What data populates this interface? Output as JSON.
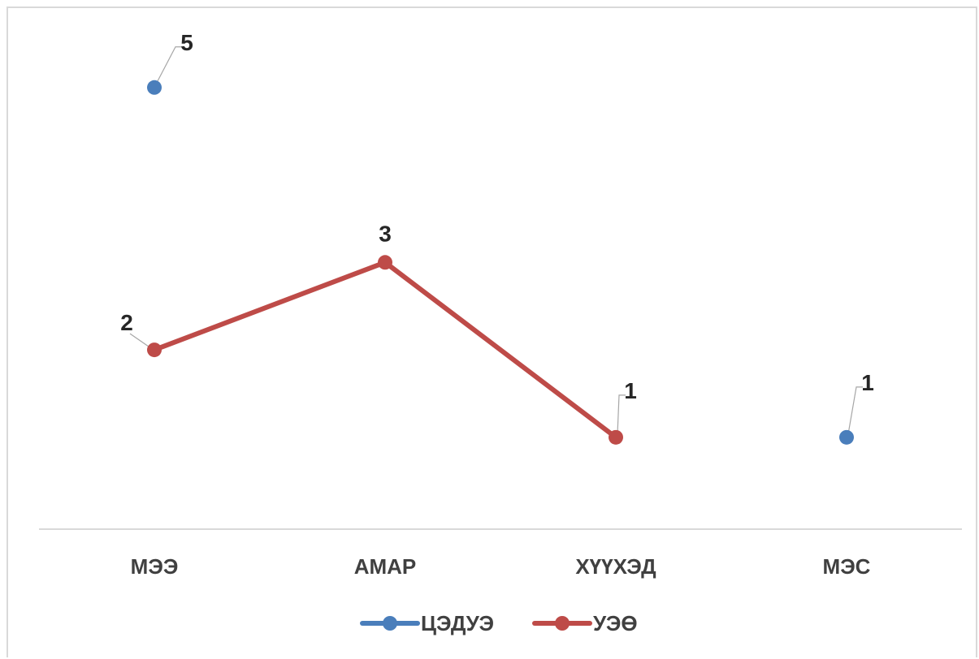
{
  "chart_data": {
    "type": "line",
    "categories": [
      "МЭЭ",
      "АМАР",
      "ХҮҮХЭД",
      "МЭС"
    ],
    "series": [
      {
        "name": "ЦЭДУЭ",
        "color": "#4a7ebb",
        "values": [
          5,
          null,
          null,
          1
        ],
        "markers_only": true
      },
      {
        "name": "УЭӨ",
        "color": "#be4b48",
        "values": [
          2,
          3,
          1,
          null
        ],
        "markers_only": false
      }
    ],
    "data_labels": true,
    "grid": false,
    "legend": "bottom",
    "ylim": [
      -0.05,
      6
    ]
  }
}
